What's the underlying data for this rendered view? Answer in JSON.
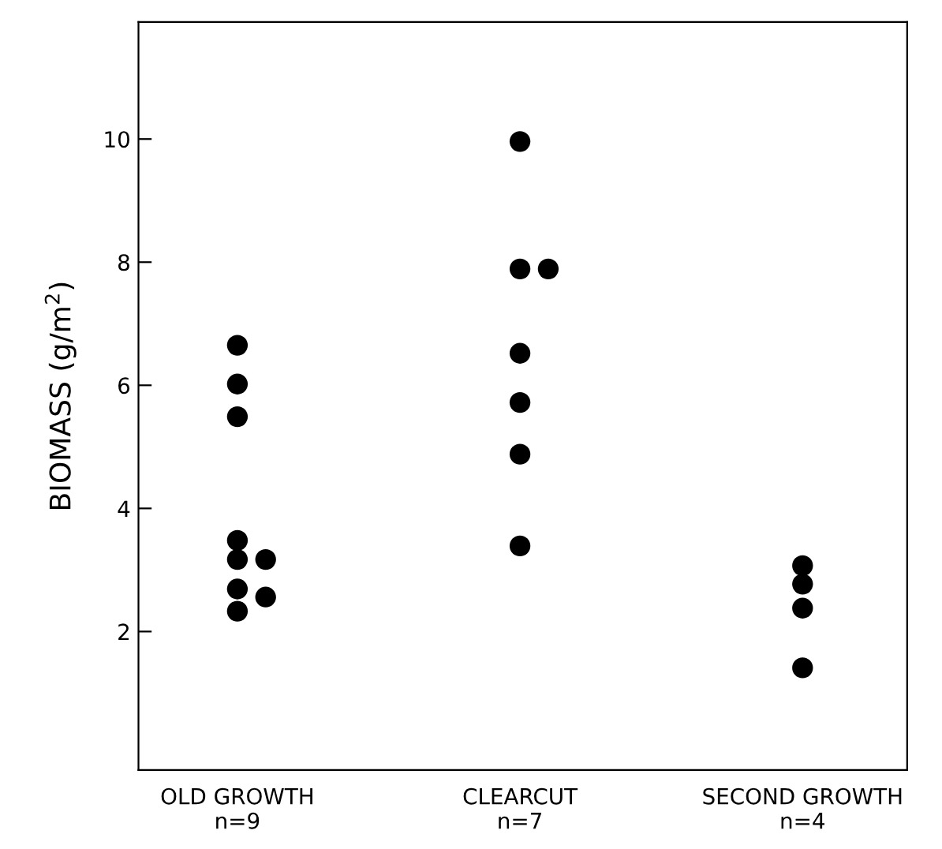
{
  "chart_data": {
    "type": "scatter",
    "ylabel": "BIOMASS (g/m$^{2}$)",
    "categories": [
      "OLD GROWTH\nn=9",
      "CLEARCUT\nn=7",
      "SECOND GROWTH\nn=4"
    ],
    "series": [
      {
        "color": "#000000",
        "x": [
          "OLD GROWTH\nn=9",
          "OLD GROWTH\nn=9",
          "OLD GROWTH\nn=9",
          "OLD GROWTH\nn=9",
          "OLD GROWTH\nn=9",
          "OLD GROWTH\nn=9",
          "OLD GROWTH\nn=9",
          "OLD GROWTH\nn=9",
          "OLD GROWTH\nn=9",
          "CLEARCUT\nn=7",
          "CLEARCUT\nn=7",
          "CLEARCUT\nn=7",
          "CLEARCUT\nn=7",
          "CLEARCUT\nn=7",
          "CLEARCUT\nn=7",
          "CLEARCUT\nn=7",
          "SECOND GROWTH\nn=4",
          "SECOND GROWTH\nn=4",
          "SECOND GROWTH\nn=4",
          "SECOND GROWTH\nn=4"
        ],
        "values": [
          6.65,
          6.02,
          5.49,
          3.48,
          3.17,
          3.17,
          2.69,
          2.56,
          2.33,
          9.96,
          7.89,
          7.89,
          6.52,
          5.72,
          4.88,
          3.39,
          3.07,
          2.77,
          2.38,
          1.41
        ]
      }
    ],
    "ylim": [
      -0.25,
      11.9
    ],
    "yticks": [
      2,
      4,
      6,
      8,
      10
    ],
    "grid": false,
    "marker": "circle",
    "legend": false
  }
}
